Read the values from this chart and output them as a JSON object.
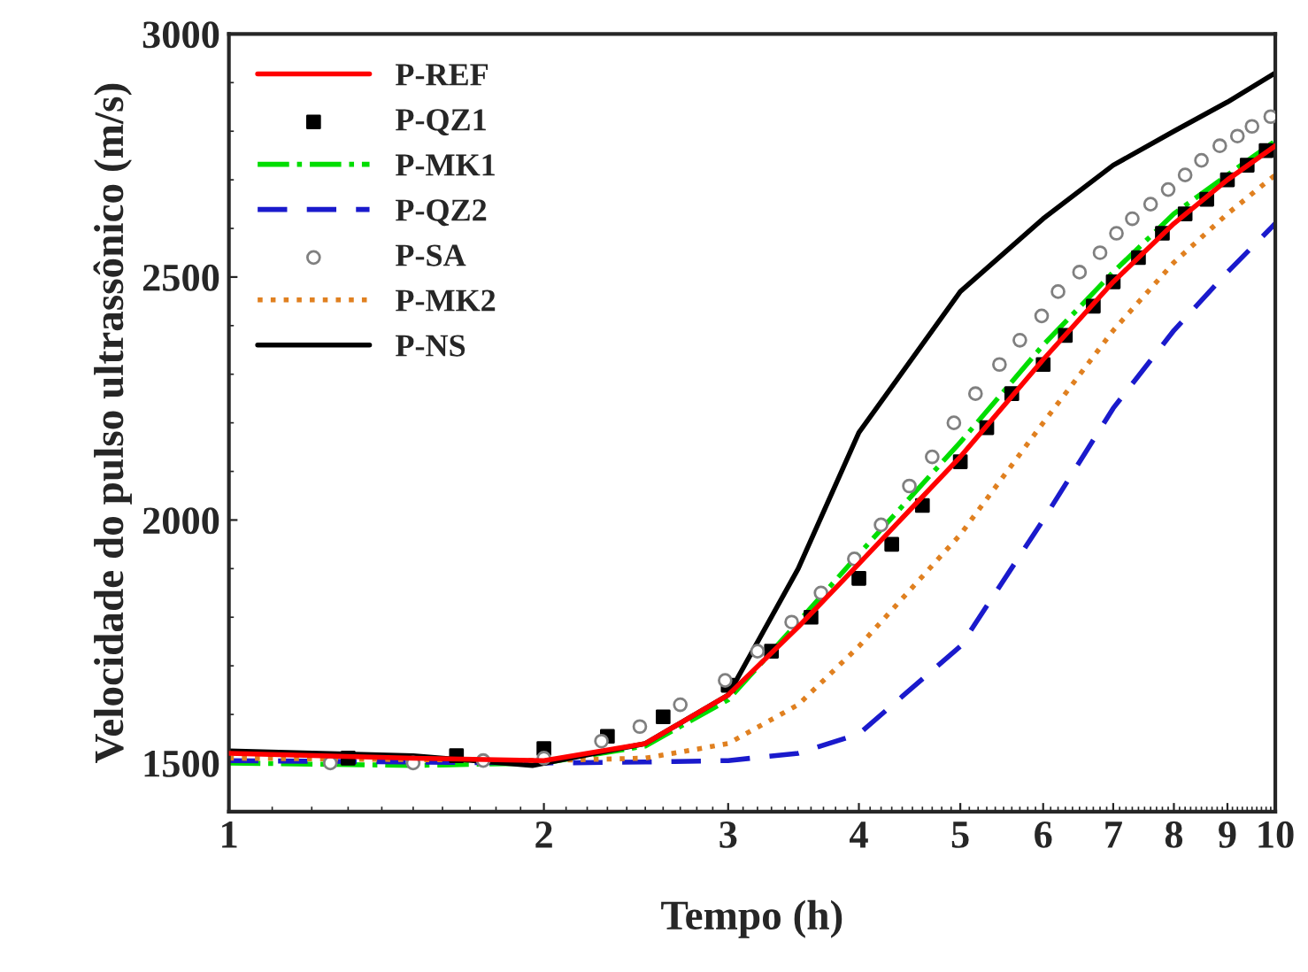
{
  "chart_data": {
    "type": "line",
    "xlabel": "Tempo (h)",
    "ylabel": "Velocidade do pulso ultrassônico (m/s)",
    "log": "x",
    "xlim": [
      1,
      10
    ],
    "xticks": [
      1,
      2,
      3,
      4,
      5,
      6,
      7,
      8,
      9,
      10
    ],
    "ylim": [
      1400,
      3000
    ],
    "yticks": [
      1500,
      2000,
      2500,
      3000
    ],
    "grid": false,
    "legend": "top left",
    "series": [
      {
        "name": "P-REF",
        "color": "#ff0000",
        "line_style": "solid",
        "x": [
          1,
          1.5,
          2,
          2.5,
          3,
          3.5,
          4,
          5,
          6,
          7,
          8,
          9,
          10
        ],
        "values": [
          1520,
          1510,
          1505,
          1540,
          1640,
          1780,
          1910,
          2130,
          2330,
          2490,
          2610,
          2700,
          2770
        ]
      },
      {
        "name": "P-QZ1",
        "type": "scatter",
        "marker": "square",
        "color": "#000000",
        "x": [
          1.3,
          1.65,
          2.0,
          2.3,
          2.6,
          3.0,
          3.3,
          3.6,
          4.0,
          4.3,
          4.6,
          5.0,
          5.3,
          5.6,
          6.0,
          6.3,
          6.7,
          7.0,
          7.4,
          7.8,
          8.2,
          8.6,
          9.0,
          9.4,
          9.8
        ],
        "values": [
          1510,
          1515,
          1530,
          1555,
          1595,
          1660,
          1730,
          1800,
          1880,
          1950,
          2030,
          2120,
          2190,
          2260,
          2320,
          2380,
          2440,
          2490,
          2540,
          2590,
          2630,
          2660,
          2700,
          2730,
          2760
        ]
      },
      {
        "name": "P-MK1",
        "color": "#00dd00",
        "line_style": "dashdot",
        "x": [
          1,
          1.5,
          2,
          2.5,
          3,
          3.5,
          4,
          5,
          6,
          7,
          8,
          9,
          10
        ],
        "values": [
          1500,
          1495,
          1500,
          1535,
          1630,
          1790,
          1930,
          2160,
          2360,
          2510,
          2630,
          2710,
          2780
        ]
      },
      {
        "name": "P-QZ2",
        "color": "#1a1acc",
        "line_style": "dashed",
        "x": [
          1,
          1.5,
          2,
          2.5,
          3,
          3.5,
          4,
          5,
          6,
          7,
          8,
          9,
          10
        ],
        "values": [
          1505,
          1502,
          1500,
          1502,
          1505,
          1520,
          1560,
          1740,
          2000,
          2230,
          2390,
          2510,
          2610
        ]
      },
      {
        "name": "P-SA",
        "type": "scatter",
        "marker": "circle-open",
        "color": "#808080",
        "x": [
          1.25,
          1.5,
          1.75,
          2.0,
          2.27,
          2.47,
          2.7,
          2.98,
          3.2,
          3.45,
          3.68,
          3.96,
          4.2,
          4.47,
          4.7,
          4.93,
          5.17,
          5.45,
          5.7,
          5.98,
          6.2,
          6.5,
          6.8,
          7.05,
          7.3,
          7.6,
          7.9,
          8.2,
          8.5,
          8.85,
          9.2,
          9.5,
          9.9
        ],
        "values": [
          1500,
          1500,
          1505,
          1510,
          1545,
          1575,
          1620,
          1670,
          1730,
          1790,
          1850,
          1920,
          1990,
          2070,
          2130,
          2200,
          2260,
          2320,
          2370,
          2420,
          2470,
          2510,
          2550,
          2590,
          2620,
          2650,
          2680,
          2710,
          2740,
          2770,
          2790,
          2810,
          2830
        ]
      },
      {
        "name": "P-MK2",
        "color": "#e08020",
        "line_style": "dotted",
        "x": [
          1,
          1.5,
          2,
          2.5,
          3,
          3.5,
          4,
          5,
          6,
          7,
          8,
          9,
          10
        ],
        "values": [
          1510,
          1507,
          1505,
          1510,
          1540,
          1620,
          1740,
          1970,
          2200,
          2390,
          2530,
          2630,
          2710
        ]
      },
      {
        "name": "P-NS",
        "color": "#000000",
        "line_style": "solid",
        "x": [
          1,
          1.5,
          1.95,
          2.5,
          3,
          3.5,
          4,
          5,
          6,
          7,
          8,
          9,
          10
        ],
        "values": [
          1525,
          1515,
          1495,
          1540,
          1640,
          1900,
          2180,
          2470,
          2620,
          2730,
          2800,
          2860,
          2920
        ]
      }
    ]
  }
}
